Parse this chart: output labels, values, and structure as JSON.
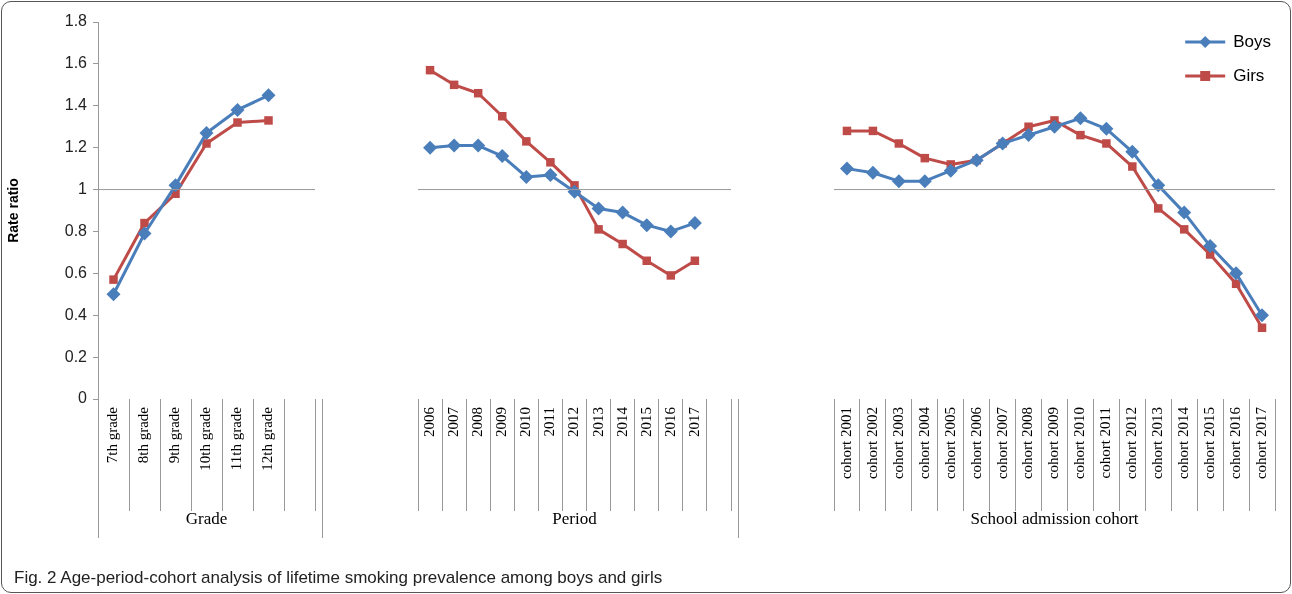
{
  "chart_data": [
    {
      "type": "line",
      "xlabel": "Grade",
      "ylabel": "Rate ratio",
      "categories": [
        "7th grade",
        "8th grade",
        "9th grade",
        "10th grade",
        "11th grade",
        "12th grade",
        null
      ],
      "series": [
        {
          "color": "#4a7ebb",
          "marker": "diamond",
          "values": [
            0.5,
            0.79,
            1.02,
            1.27,
            1.38,
            1.45,
            null
          ]
        },
        {
          "color": "#be4b48",
          "marker": "square",
          "values": [
            0.57,
            0.84,
            0.98,
            1.22,
            1.32,
            1.33,
            null
          ]
        }
      ],
      "ylim": [
        0,
        1.8
      ],
      "yticks": [
        0,
        0.2,
        0.4,
        0.6,
        0.8,
        1,
        1.2,
        1.4,
        1.6,
        1.8
      ],
      "ref_lines": [
        {
          "axis": "y",
          "value": 1
        }
      ],
      "annotations": [
        "Fig. 2 Age-period-cohort analysis of lifetime smoking prevalence among boys and girls"
      ]
    },
    {
      "type": "line",
      "xlabel": "Period",
      "categories": [
        "2006",
        "2007",
        "2008",
        "2009",
        "2010",
        "2011",
        "2012",
        "2013",
        "2014",
        "2015",
        "2016",
        "2017",
        null
      ],
      "series": [
        {
          "color": "#4a7ebb",
          "marker": "diamond",
          "values": [
            1.2,
            1.21,
            1.21,
            1.16,
            1.06,
            1.07,
            0.99,
            0.91,
            0.89,
            0.83,
            0.8,
            0.84,
            null
          ]
        },
        {
          "color": "#be4b48",
          "marker": "square",
          "values": [
            1.57,
            1.5,
            1.46,
            1.35,
            1.23,
            1.13,
            1.02,
            0.81,
            0.74,
            0.66,
            0.59,
            0.66,
            null
          ]
        }
      ],
      "ylim": [
        0,
        1.8
      ],
      "tick_labels": "x",
      "ref_lines": [
        {
          "axis": "y",
          "value": 1
        }
      ]
    },
    {
      "type": "line",
      "xlabel": "School admission cohort",
      "categories": [
        "cohort 2001",
        "cohort 2002",
        "cohort 2003",
        "cohort 2004",
        "cohort 2005",
        "cohort 2006",
        "cohort 2007",
        "cohort 2008",
        "cohort 2009",
        "cohort 2010",
        "cohort 2011",
        "cohort 2012",
        "cohort 2013",
        "cohort 2014",
        "cohort 2015",
        "cohort 2016",
        "cohort 2017"
      ],
      "series": [
        {
          "name": "Boys",
          "color": "#4a7ebb",
          "marker": "diamond",
          "values": [
            1.1,
            1.08,
            1.04,
            1.04,
            1.09,
            1.14,
            1.22,
            1.26,
            1.3,
            1.34,
            1.29,
            1.18,
            1.02,
            0.89,
            0.73,
            0.6,
            0.4
          ]
        },
        {
          "name": "Girs",
          "color": "#be4b48",
          "marker": "square",
          "values": [
            1.28,
            1.28,
            1.22,
            1.15,
            1.12,
            1.14,
            1.22,
            1.3,
            1.33,
            1.26,
            1.22,
            1.11,
            0.91,
            0.81,
            0.69,
            0.55,
            0.34
          ]
        }
      ],
      "ylim": [
        0,
        1.8
      ],
      "tick_labels": "x",
      "legend": "top right",
      "ref_lines": [
        {
          "axis": "y",
          "value": 1
        }
      ]
    }
  ]
}
